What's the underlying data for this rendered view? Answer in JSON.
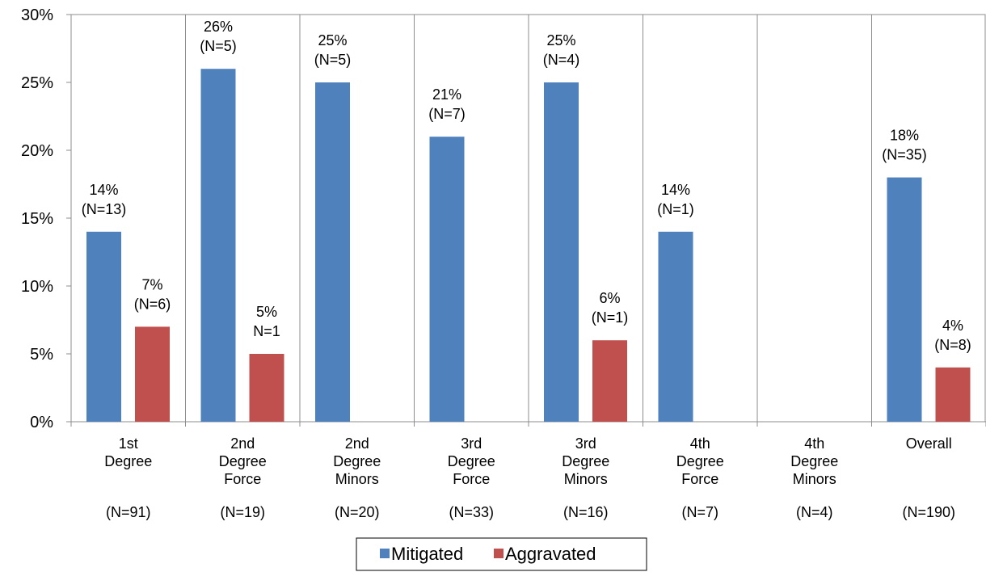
{
  "chart_data": {
    "type": "bar",
    "title": "",
    "xlabel": "",
    "ylabel": "",
    "ylim": [
      0,
      30
    ],
    "yticks": [
      "0%",
      "5%",
      "10%",
      "15%",
      "20%",
      "25%",
      "30%"
    ],
    "ytick_values": [
      0,
      5,
      10,
      15,
      20,
      25,
      30
    ],
    "categories": [
      {
        "lines": [
          "1st",
          "Degree",
          ""
        ],
        "n": "(N=91)"
      },
      {
        "lines": [
          "2nd",
          "Degree",
          "Force"
        ],
        "n": "(N=19)"
      },
      {
        "lines": [
          "2nd",
          "Degree",
          "Minors"
        ],
        "n": "(N=20)"
      },
      {
        "lines": [
          "3rd",
          "Degree",
          "Force"
        ],
        "n": "(N=33)"
      },
      {
        "lines": [
          "3rd",
          "Degree",
          "Minors"
        ],
        "n": "(N=16)"
      },
      {
        "lines": [
          "4th",
          "Degree",
          "Force"
        ],
        "n": "(N=7)"
      },
      {
        "lines": [
          "4th",
          "Degree",
          "Minors"
        ],
        "n": "(N=4)"
      },
      {
        "lines": [
          "Overall",
          "",
          ""
        ],
        "n": "(N=190)"
      }
    ],
    "series": [
      {
        "name": "Mitigated",
        "color": "#4F81BD",
        "values": [
          14,
          26,
          25,
          21,
          25,
          14,
          null,
          18
        ],
        "labels": [
          [
            "14%",
            "(N=13)"
          ],
          [
            "26%",
            "(N=5)"
          ],
          [
            "25%",
            "(N=5)"
          ],
          [
            "21%",
            "(N=7)"
          ],
          [
            "25%",
            "(N=4)"
          ],
          [
            "14%",
            "(N=1)"
          ],
          null,
          [
            "18%",
            "(N=35)"
          ]
        ]
      },
      {
        "name": "Aggravated",
        "color": "#C0504D",
        "values": [
          7,
          5,
          null,
          null,
          6,
          null,
          null,
          4
        ],
        "labels": [
          [
            "7%",
            "(N=6)"
          ],
          [
            "5%",
            "N=1"
          ],
          null,
          null,
          [
            "6%",
            "(N=1)"
          ],
          null,
          null,
          [
            "4%",
            "(N=8)"
          ]
        ]
      }
    ],
    "grid": "vertical separators",
    "legend_position": "bottom"
  }
}
